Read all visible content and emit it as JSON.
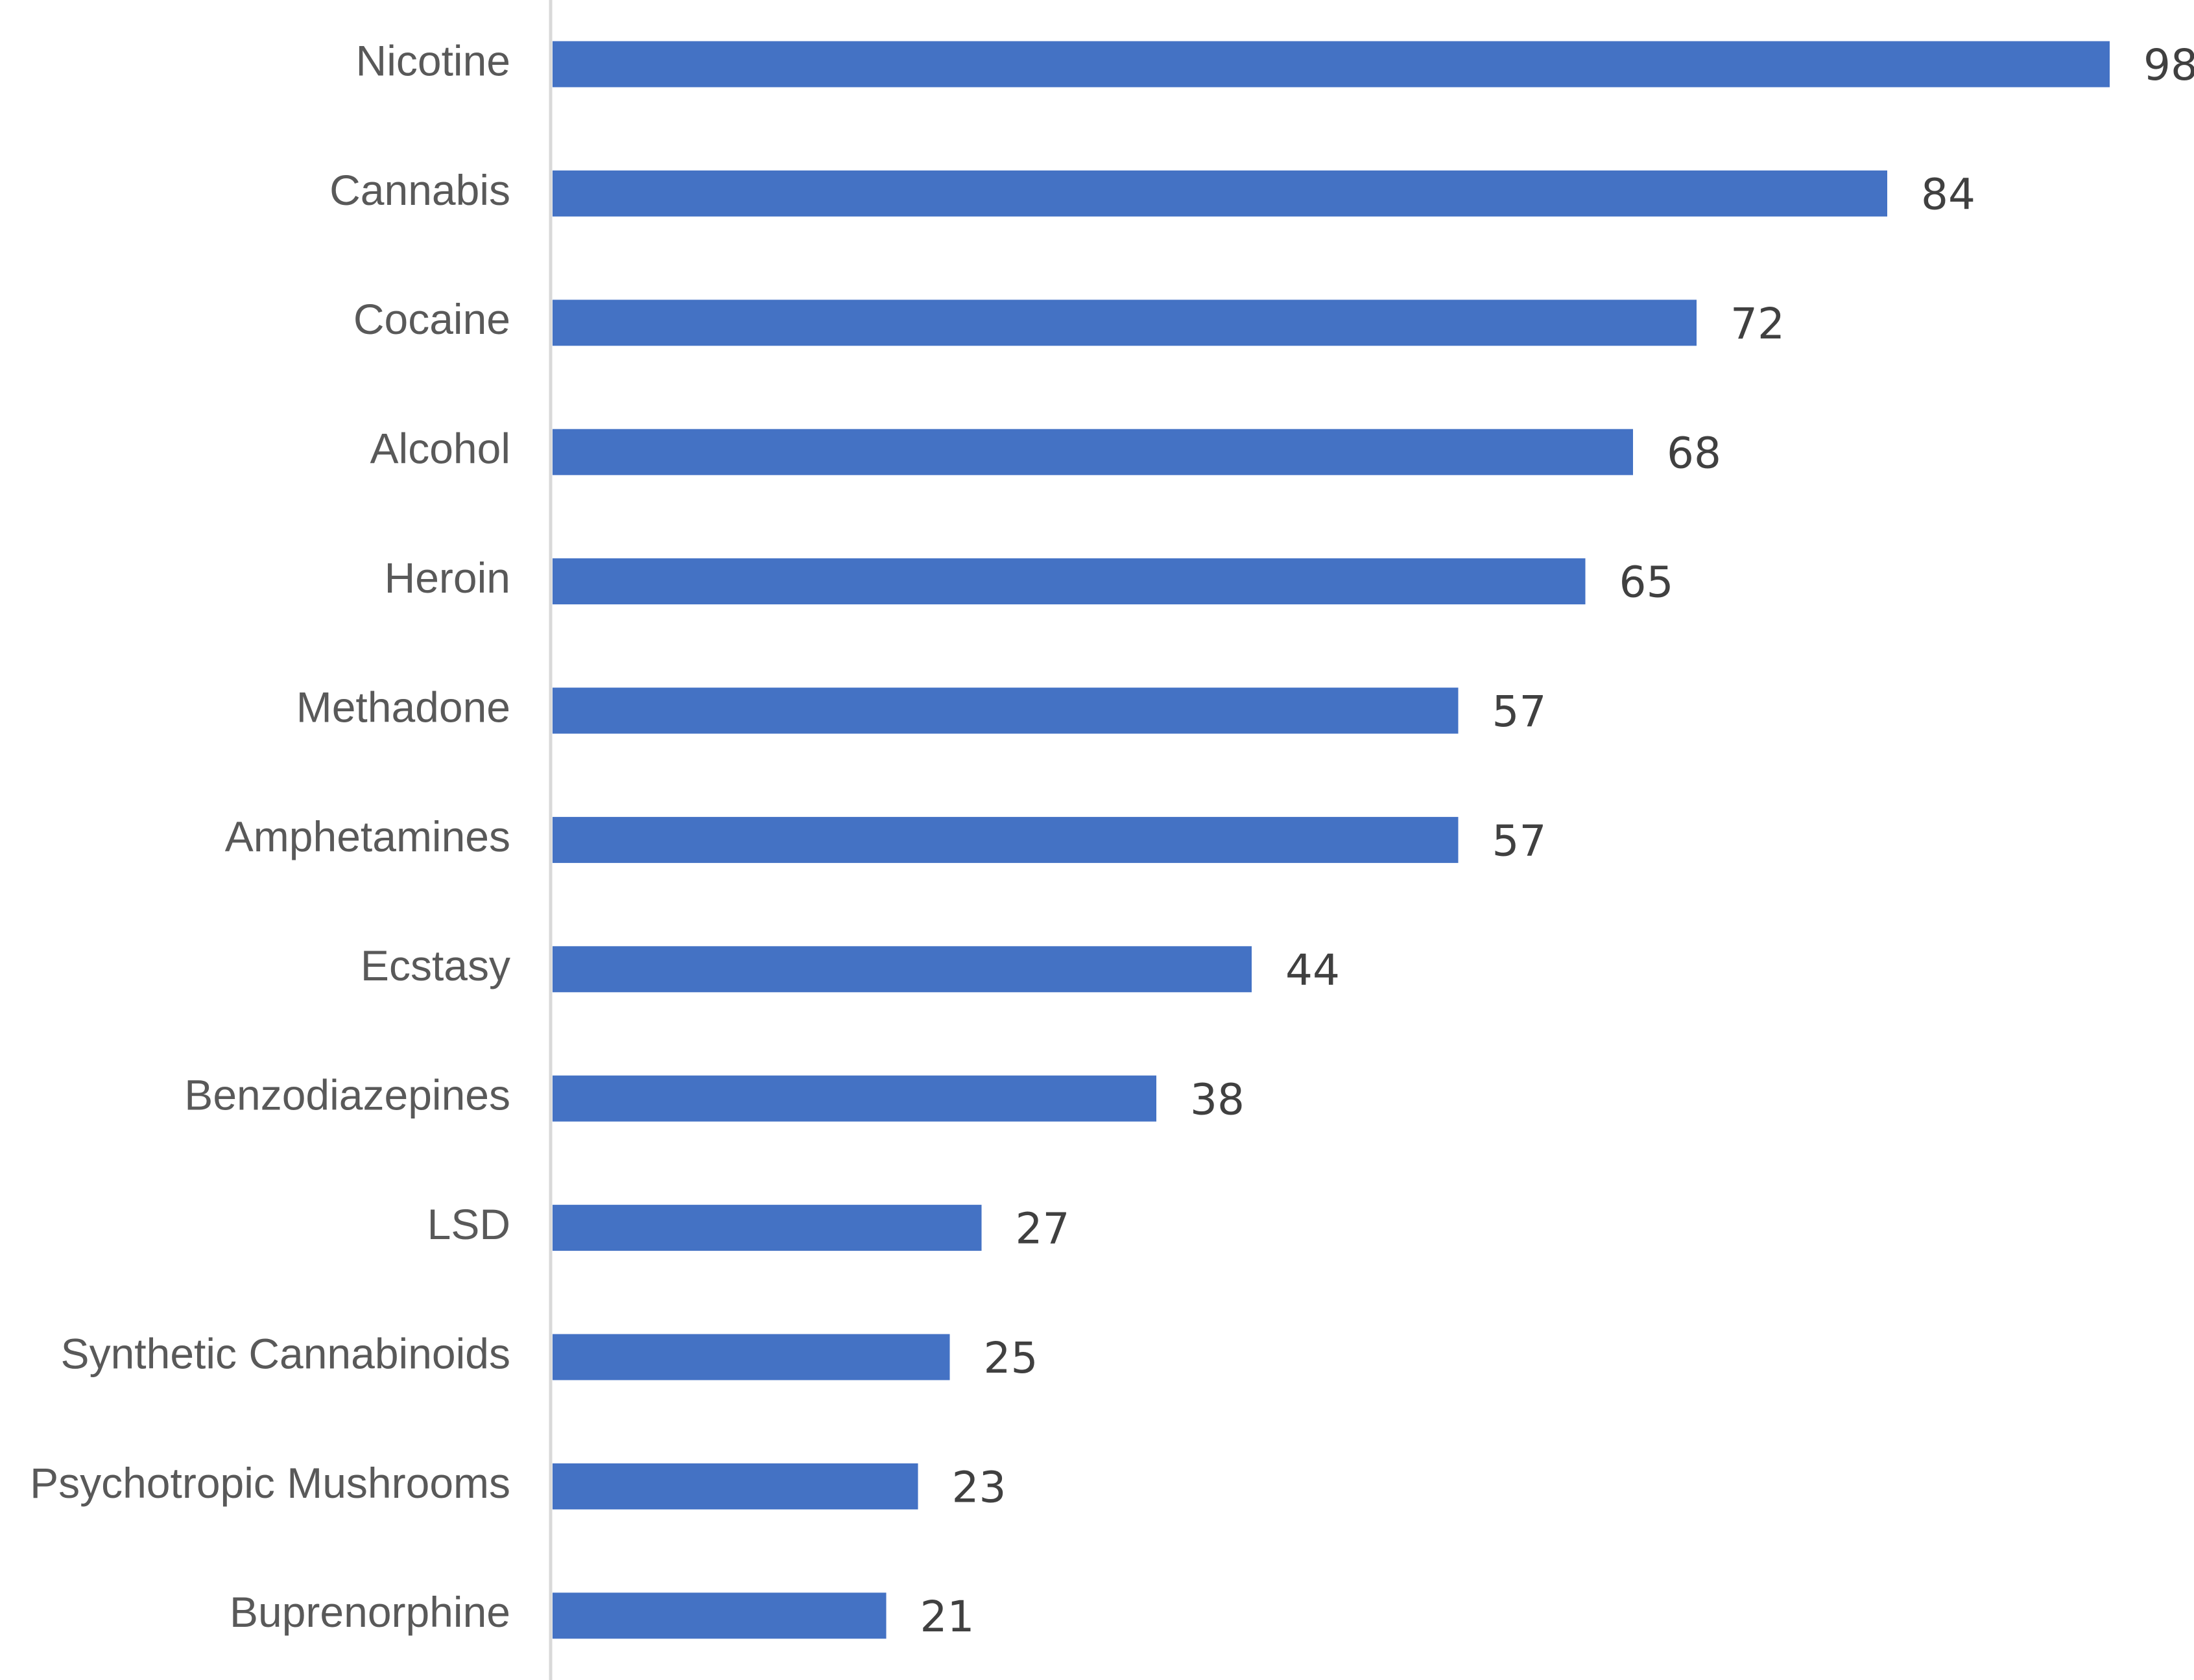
{
  "chart_data": {
    "type": "bar",
    "orientation": "horizontal",
    "categories": [
      "Nicotine",
      "Cannabis",
      "Cocaine",
      "Alcohol",
      "Heroin",
      "Methadone",
      "Amphetamines",
      "Ecstasy",
      "Benzodiazepines",
      "LSD",
      "Synthetic Cannabinoids",
      "Psychotropic Mushrooms",
      "Buprenorphine"
    ],
    "values": [
      98,
      84,
      72,
      68,
      65,
      57,
      57,
      44,
      38,
      27,
      25,
      23,
      21
    ],
    "color": "#4472c4",
    "grid": false
  }
}
